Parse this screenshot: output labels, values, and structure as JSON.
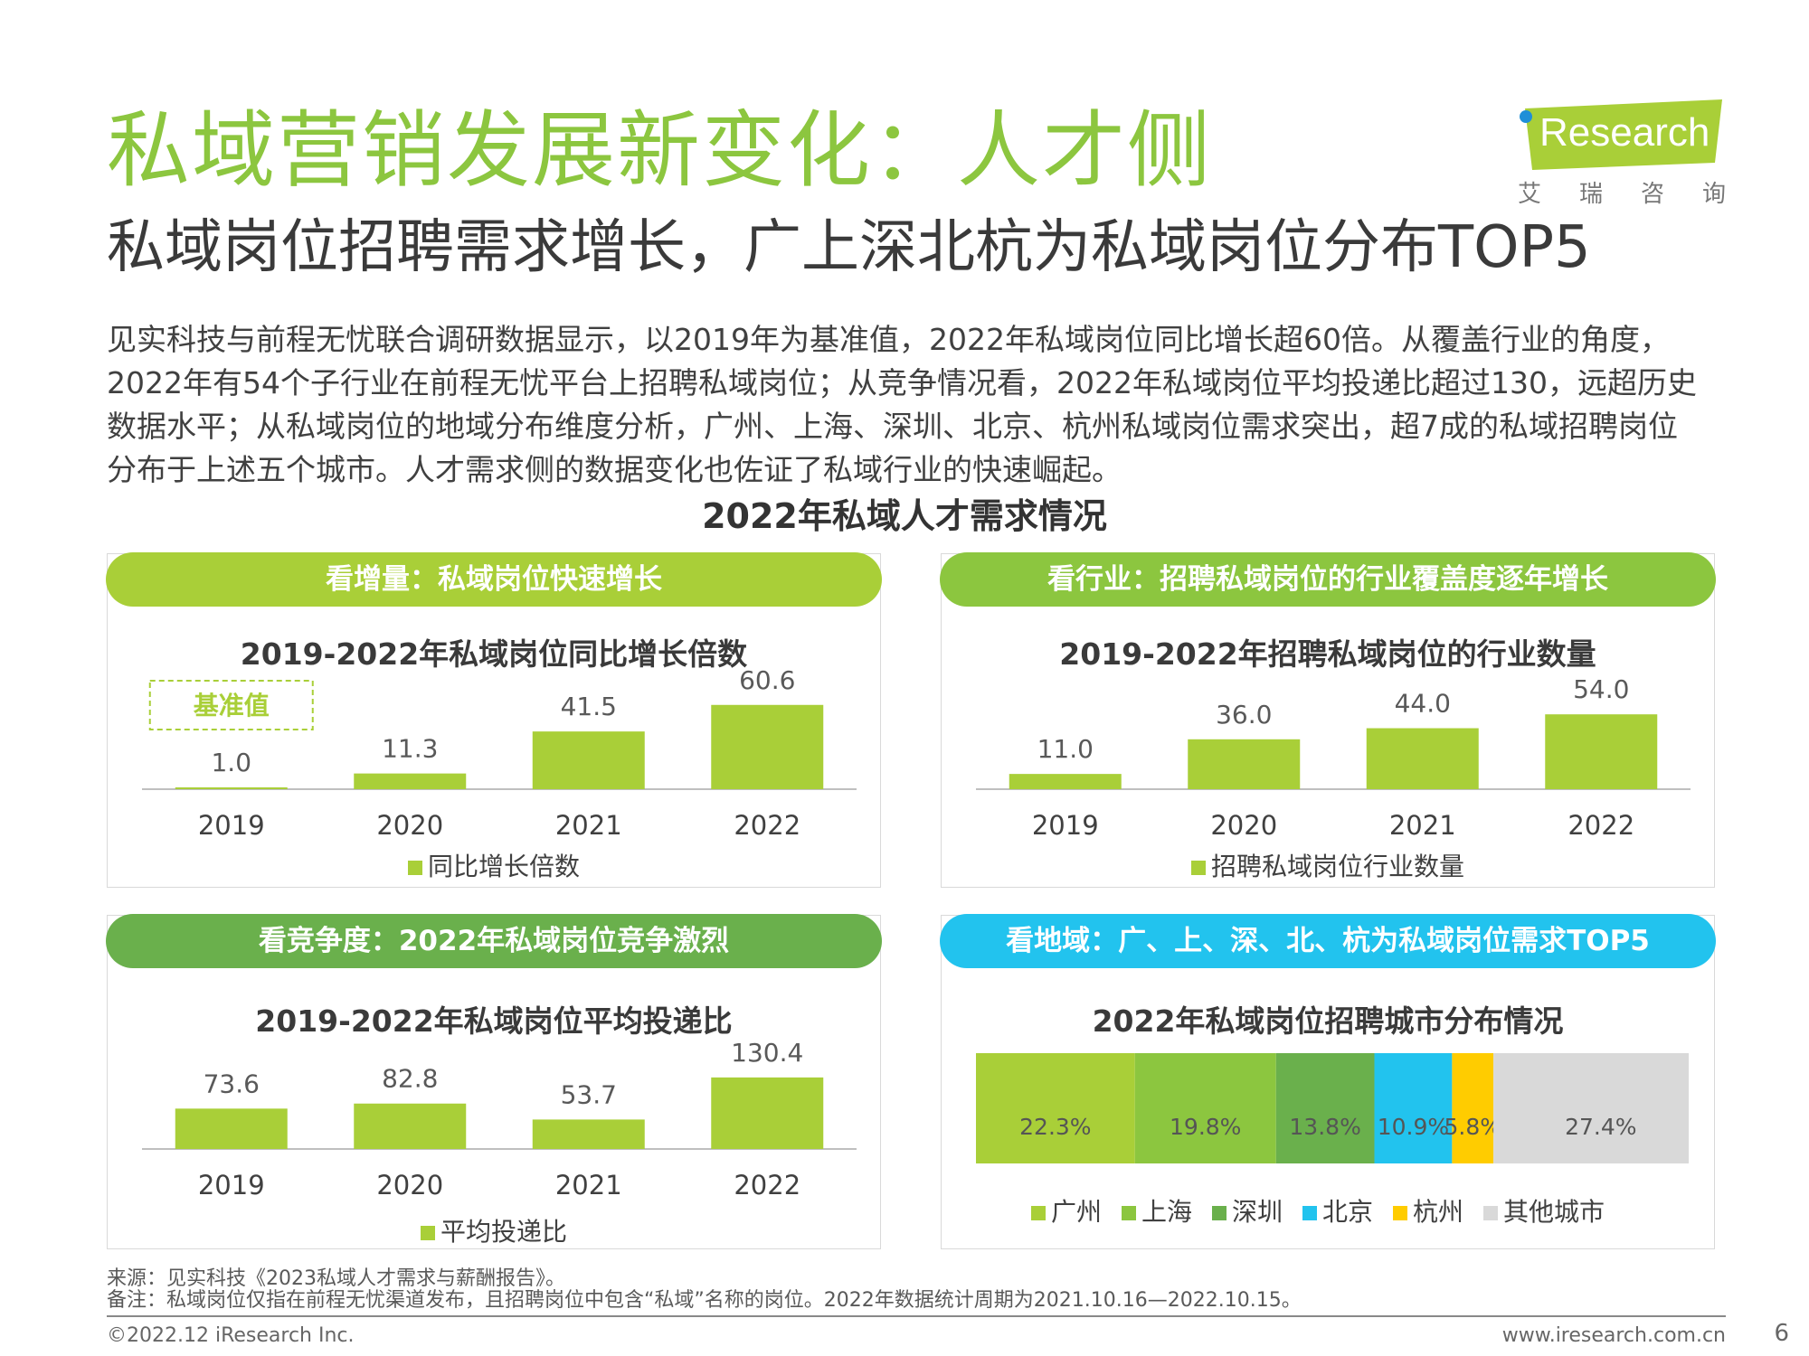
{
  "title": "私域营销发展新变化：人才侧",
  "subtitle": "私域岗位招聘需求增长，广上深北杭为私域岗位分布TOP5",
  "body_lines": [
    "见实科技与前程无忧联合调研数据显示，以2019年为基准值，2022年私域岗位同比增长超60倍。从覆盖行业的角度，",
    "2022年有54个子行业在前程无忧平台上招聘私域岗位；从竞争情况看，2022年私域岗位平均投递比超过130，远超历史",
    "数据水平；从私域岗位的地域分布维度分析，广州、上海、深圳、北京、杭州私域岗位需求突出，超7成的私域招聘岗位",
    "分布于上述五个城市。人才需求侧的数据变化也佐证了私域行业的快速崛起。"
  ],
  "section_title": "2022年私域人才需求情况",
  "logo": {
    "word": "Research",
    "cn": [
      "艾",
      "瑞",
      "咨",
      "询"
    ]
  },
  "panels": {
    "growth": {
      "header": "看增量：私域岗位快速增长",
      "header_color": "#a9cf38"
    },
    "industry": {
      "header": "看行业：招聘私域岗位的行业覆盖度逐年增长",
      "header_color": "#8cc63f"
    },
    "competition": {
      "header": "看竞争度：2022年私域岗位竞争激烈",
      "header_color": "#6ab04c"
    },
    "region": {
      "header": "看地域：广、上、深、北、杭为私域岗位需求TOP5",
      "header_color": "#22c3ee"
    }
  },
  "colors": {
    "bar": "#a9cf38"
  },
  "chart_data": [
    {
      "type": "bar",
      "title": "2019-2022年私域岗位同比增长倍数",
      "categories": [
        "2019",
        "2020",
        "2021",
        "2022"
      ],
      "series": [
        {
          "name": "同比增长倍数",
          "values": [
            1.0,
            11.3,
            41.5,
            60.6
          ]
        }
      ],
      "annotation": "基准值",
      "ylim": [
        0,
        65
      ]
    },
    {
      "type": "bar",
      "title": "2019-2022年招聘私域岗位的行业数量",
      "categories": [
        "2019",
        "2020",
        "2021",
        "2022"
      ],
      "series": [
        {
          "name": "招聘私域岗位行业数量",
          "values": [
            11.0,
            36.0,
            44.0,
            54.0
          ]
        }
      ],
      "ylim": [
        0,
        60
      ]
    },
    {
      "type": "bar",
      "title": "2019-2022年私域岗位平均投递比",
      "categories": [
        "2019",
        "2020",
        "2021",
        "2022"
      ],
      "series": [
        {
          "name": "平均投递比",
          "values": [
            73.6,
            82.8,
            53.7,
            130.4
          ]
        }
      ],
      "ylim": [
        0,
        145
      ]
    },
    {
      "type": "bar",
      "stacked": true,
      "title": "2022年私域岗位招聘城市分布情况",
      "series": [
        {
          "name": "广州",
          "value": 22.3,
          "label": "22.3%",
          "color": "#a9cf38"
        },
        {
          "name": "上海",
          "value": 19.8,
          "label": "19.8%",
          "color": "#8cc63f"
        },
        {
          "name": "深圳",
          "value": 13.8,
          "label": "13.8%",
          "color": "#6ab04c"
        },
        {
          "name": "北京",
          "value": 10.9,
          "label": "10.9%",
          "color": "#22c3ee"
        },
        {
          "name": "杭州",
          "value": 5.8,
          "label": "5.8%",
          "color": "#ffcc00"
        },
        {
          "name": "其他城市",
          "value": 27.4,
          "label": "27.4%",
          "color": "#d9d9d9"
        }
      ]
    }
  ],
  "footer": {
    "source": "来源：见实科技《2023私域人才需求与薪酬报告》。",
    "note": "备注：私域岗位仅指在前程无忧渠道发布，且招聘岗位中包含“私域”名称的岗位。2022年数据统计周期为2021.10.16—2022.10.15。",
    "copyright": "©2022.12 iResearch Inc.",
    "url": "www.iresearch.com.cn",
    "page": "6"
  }
}
